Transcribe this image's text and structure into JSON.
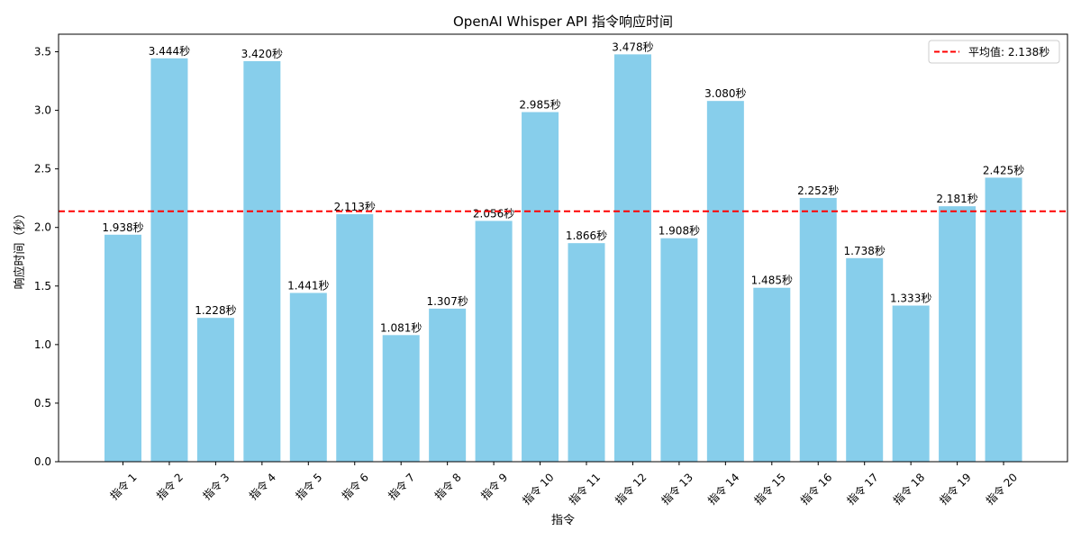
{
  "chart_data": {
    "type": "bar",
    "title": "OpenAI Whisper API 指令响应时间",
    "xlabel": "指令",
    "ylabel": "响应时间（秒）",
    "ylim": [
      0,
      3.65
    ],
    "yticks": [
      "0.0",
      "0.5",
      "1.0",
      "1.5",
      "2.0",
      "2.5",
      "3.0",
      "3.5"
    ],
    "ytick_values": [
      0,
      0.5,
      1.0,
      1.5,
      2.0,
      2.5,
      3.0,
      3.5
    ],
    "categories": [
      "指令 1",
      "指令 2",
      "指令 3",
      "指令 4",
      "指令 5",
      "指令 6",
      "指令 7",
      "指令 8",
      "指令 9",
      "指令 10",
      "指令 11",
      "指令 12",
      "指令 13",
      "指令 14",
      "指令 15",
      "指令 16",
      "指令 17",
      "指令 18",
      "指令 19",
      "指令 20"
    ],
    "values": [
      1.938,
      3.444,
      1.228,
      3.42,
      1.441,
      2.113,
      1.081,
      1.307,
      2.056,
      2.985,
      1.866,
      3.478,
      1.908,
      3.08,
      1.485,
      2.252,
      1.738,
      1.333,
      2.181,
      2.425
    ],
    "value_labels": [
      "1.938秒",
      "3.444秒",
      "1.228秒",
      "3.420秒",
      "1.441秒",
      "2.113秒",
      "1.081秒",
      "1.307秒",
      "2.056秒",
      "2.985秒",
      "1.866秒",
      "3.478秒",
      "1.908秒",
      "3.080秒",
      "1.485秒",
      "2.252秒",
      "1.738秒",
      "1.333秒",
      "2.181秒",
      "2.425秒"
    ],
    "bar_color": "#87ceeb",
    "average": {
      "value": 2.138,
      "label": "平均值: 2.138秒",
      "color": "#ff0000",
      "style": "dashed"
    },
    "legend": {
      "placement": "top-right"
    },
    "grid": false
  }
}
